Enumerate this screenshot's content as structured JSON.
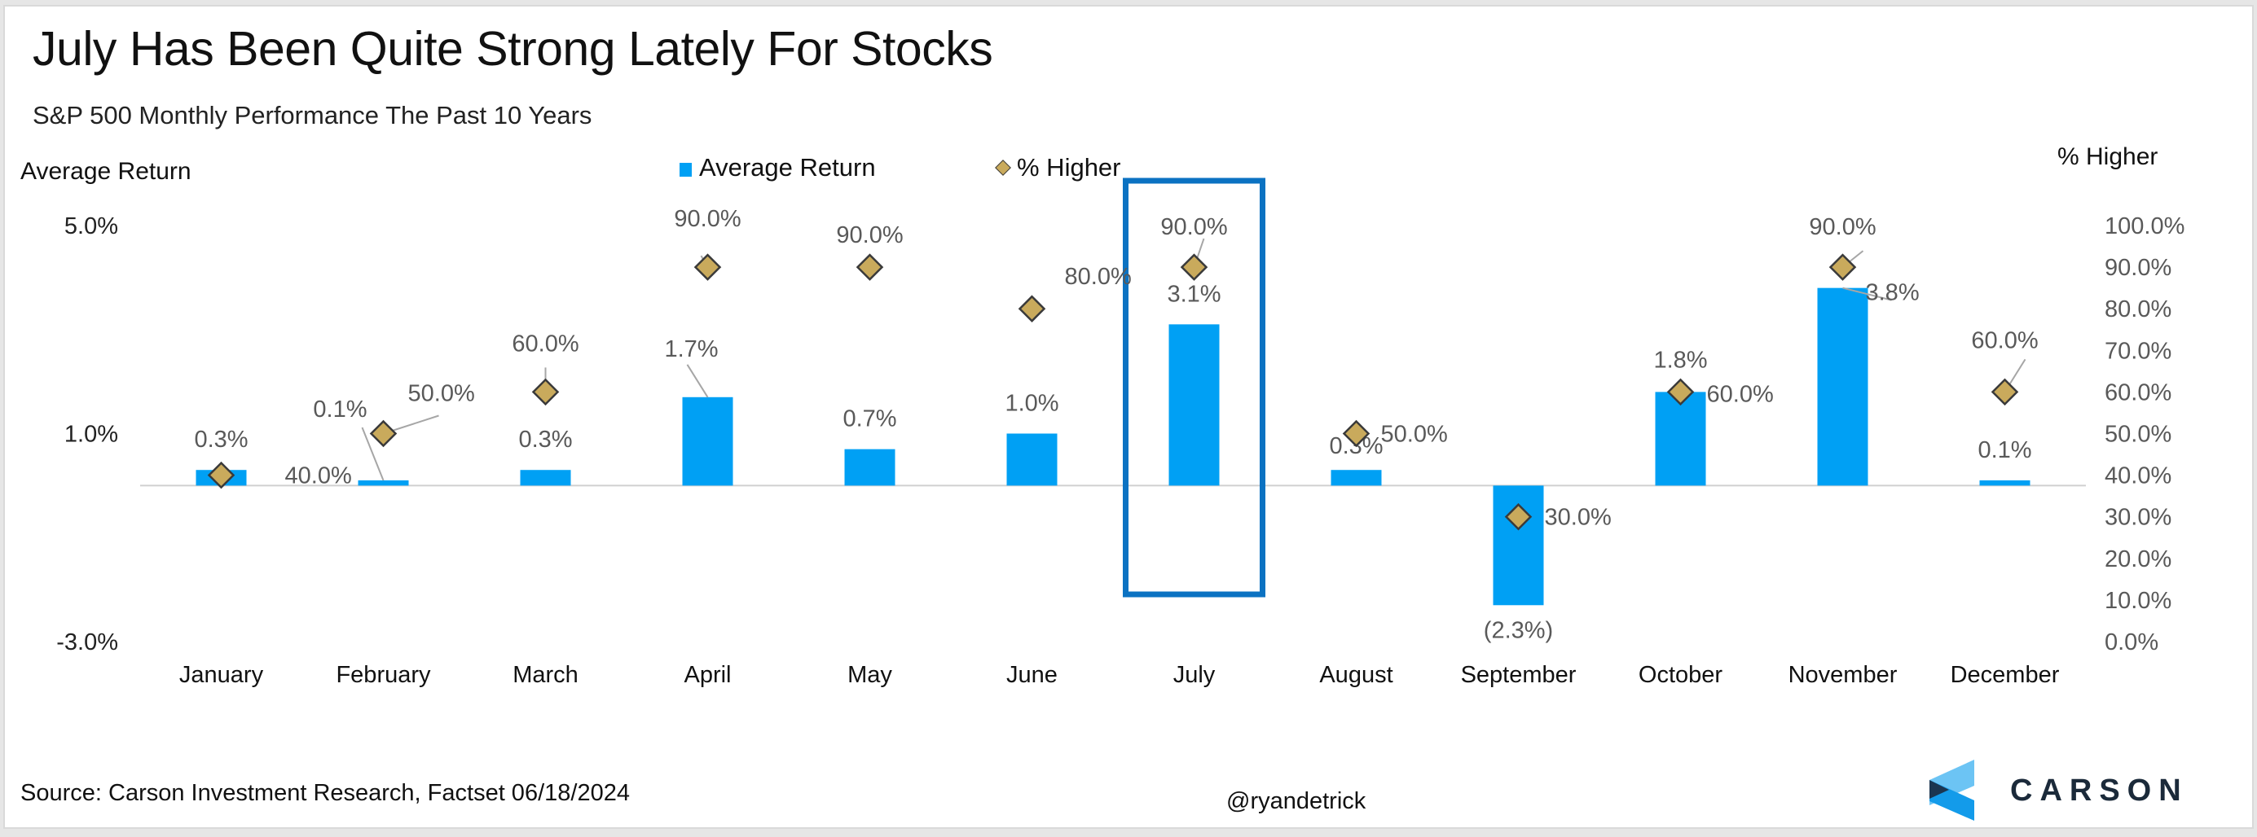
{
  "header": {
    "title": "July Has Been Quite Strong Lately For Stocks",
    "subtitle": "S&P 500 Monthly Performance The Past 10 Years"
  },
  "footer": {
    "source": "Source: Carson Investment  Research, Factset 06/18/2024",
    "handle": "@ryandetrick",
    "logo_text": "CARSON",
    "logo_icon": "carson-chevron-logo"
  },
  "colors": {
    "bar": "#00A0F4",
    "diamond_fill": "#C9AA5C",
    "diamond_stroke": "#3a3a3a",
    "highlight_box": "#0B72C2",
    "label": "#595959",
    "zero_line": "#d0d0d0",
    "logo_light": "#6CC4F4",
    "logo_mid": "#139BEA",
    "logo_dark": "#1b3550"
  },
  "chart_data": {
    "type": "bar",
    "title": "July Has Been Quite Strong Lately For Stocks",
    "subtitle": "S&P 500 Monthly Performance The Past 10 Years",
    "xlabel": "",
    "ylabel": "Average Return",
    "y2label": "% Higher",
    "ylim": [
      -3.0,
      5.0
    ],
    "y2lim": [
      0,
      100
    ],
    "yticks": [
      "5.0%",
      "1.0%",
      "-3.0%"
    ],
    "ytick_values": [
      5.0,
      1.0,
      -3.0
    ],
    "y2ticks": [
      "100.0%",
      "90.0%",
      "80.0%",
      "70.0%",
      "60.0%",
      "50.0%",
      "40.0%",
      "30.0%",
      "20.0%",
      "10.0%",
      "0.0%"
    ],
    "y2tick_values": [
      100,
      90,
      80,
      70,
      60,
      50,
      40,
      30,
      20,
      10,
      0
    ],
    "grid": false,
    "legend": {
      "position": "top-center",
      "entries": [
        "Average Return",
        "% Higher"
      ]
    },
    "categories": [
      "January",
      "February",
      "March",
      "April",
      "May",
      "June",
      "July",
      "August",
      "September",
      "October",
      "November",
      "December"
    ],
    "highlight": "July",
    "series": [
      {
        "name": "Average Return",
        "type": "bar",
        "axis": "left",
        "values": [
          0.3,
          0.1,
          0.3,
          1.7,
          0.7,
          1.0,
          3.1,
          0.3,
          -2.3,
          1.8,
          3.8,
          0.1
        ],
        "labels": [
          "0.3%",
          "0.1%",
          "0.3%",
          "1.7%",
          "0.7%",
          "1.0%",
          "3.1%",
          "0.3%",
          "(2.3%)",
          "1.8%",
          "3.8%",
          "0.1%"
        ]
      },
      {
        "name": "% Higher",
        "type": "scatter",
        "marker": "diamond",
        "axis": "right",
        "values": [
          40,
          50,
          60,
          90,
          90,
          80,
          90,
          50,
          30,
          60,
          90,
          60
        ],
        "labels": [
          "40.0%",
          "50.0%",
          "60.0%",
          "90.0%",
          "90.0%",
          "80.0%",
          "90.0%",
          "50.0%",
          "30.0%",
          "60.0%",
          "90.0%",
          "60.0%"
        ]
      }
    ]
  }
}
